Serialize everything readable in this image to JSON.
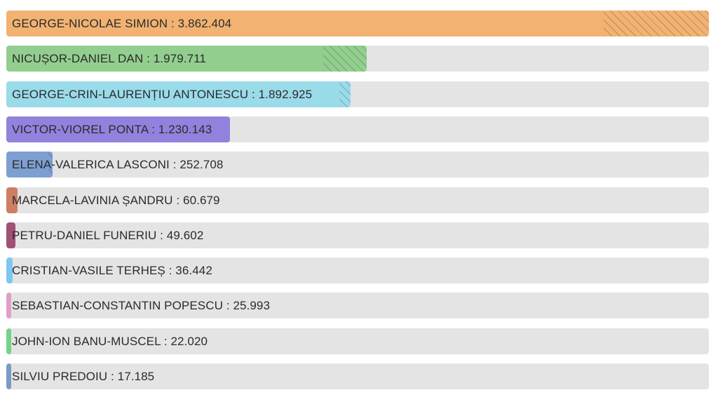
{
  "chart_data": {
    "type": "bar",
    "orientation": "horizontal",
    "categories": [
      "GEORGE-NICOLAE SIMION",
      "NICUȘOR-DANIEL DAN",
      "GEORGE-CRIN-LAURENȚIU ANTONESCU",
      "VICTOR-VIOREL PONTA",
      "ELENA-VALERICA LASCONI",
      "MARCELA-LAVINIA ȘANDRU",
      "PETRU-DANIEL FUNERIU",
      "CRISTIAN-VASILE TERHEȘ",
      "SEBASTIAN-CONSTANTIN POPESCU",
      "JOHN-ION BANU-MUSCEL",
      "SILVIU PREDOIU"
    ],
    "values": [
      3862404,
      1979711,
      1892925,
      1230143,
      252708,
      60679,
      49602,
      36442,
      25993,
      22020,
      17185
    ],
    "value_labels": [
      "3.862.404",
      "1.979.711",
      "1.892.925",
      "1.230.143",
      "252.708",
      "60.679",
      "49.602",
      "36.442",
      "25.993",
      "22.020",
      "17.185"
    ],
    "colors": [
      "#f2b272",
      "#92cf8f",
      "#9adbea",
      "#9382dd",
      "#7e9fd2",
      "#ce7e64",
      "#a05174",
      "#7fc6f1",
      "#dfa0c8",
      "#74d388",
      "#7b9bc5"
    ],
    "track_color": "#e4e4e4",
    "xlim": [
      0,
      3862404
    ],
    "grid": false,
    "legend": "none"
  }
}
